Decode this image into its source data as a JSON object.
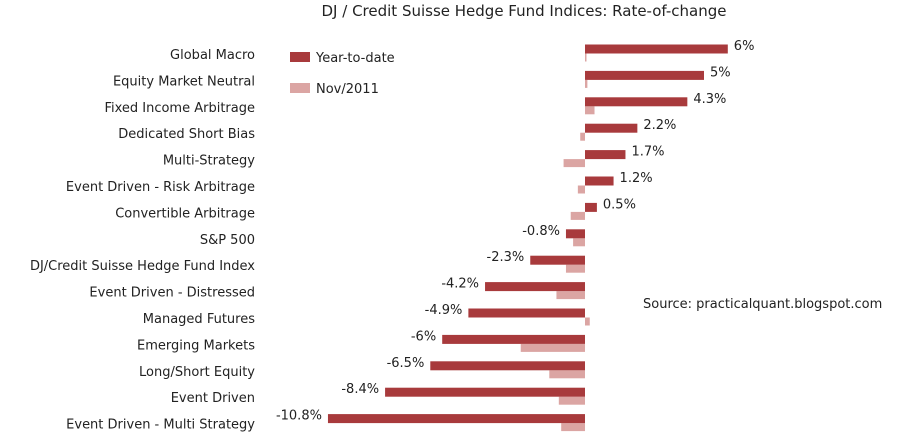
{
  "chart_data": {
    "type": "bar",
    "orientation": "horizontal",
    "title": "DJ / Credit Suisse Hedge Fund Indices: Rate-of-change",
    "categories": [
      "Global Macro",
      "Equity Market Neutral",
      "Fixed Income Arbitrage",
      "Dedicated Short Bias",
      "Multi-Strategy",
      "Event Driven - Risk Arbitrage",
      "Convertible Arbitrage",
      "S&P 500",
      "DJ/Credit Suisse Hedge Fund Index",
      "Event Driven - Distressed",
      "Managed Futures",
      "Emerging Markets",
      "Long/Short Equity",
      "Event Driven",
      "Event Driven - Multi Strategy"
    ],
    "series": [
      {
        "name": "Year-to-date",
        "color": "#a83a3c",
        "values": [
          6,
          5,
          4.3,
          2.2,
          1.7,
          1.2,
          0.5,
          -0.8,
          -2.3,
          -4.2,
          -4.9,
          -6,
          -6.5,
          -8.4,
          -10.8
        ]
      },
      {
        "name": "Nov/2011",
        "color": "#dba5a3",
        "values": [
          0,
          0.1,
          0.4,
          -0.2,
          -0.9,
          -0.3,
          -0.6,
          -0.5,
          -0.8,
          -1.2,
          0.2,
          -2.7,
          -1.5,
          -1.1,
          -1.0
        ]
      }
    ],
    "data_labels": [
      "6%",
      "5%",
      "4.3%",
      "2.2%",
      "1.7%",
      "1.2%",
      "0.5%",
      "-0.8%",
      "-2.3%",
      "-4.2%",
      "-4.9%",
      "-6%",
      "-6.5%",
      "-8.4%",
      "-10.8%"
    ],
    "xlim": [
      -11.5,
      6.5
    ],
    "grid": false,
    "legend_position": "top-left",
    "annotation": "Source: practicalquant.blogspot.com"
  }
}
